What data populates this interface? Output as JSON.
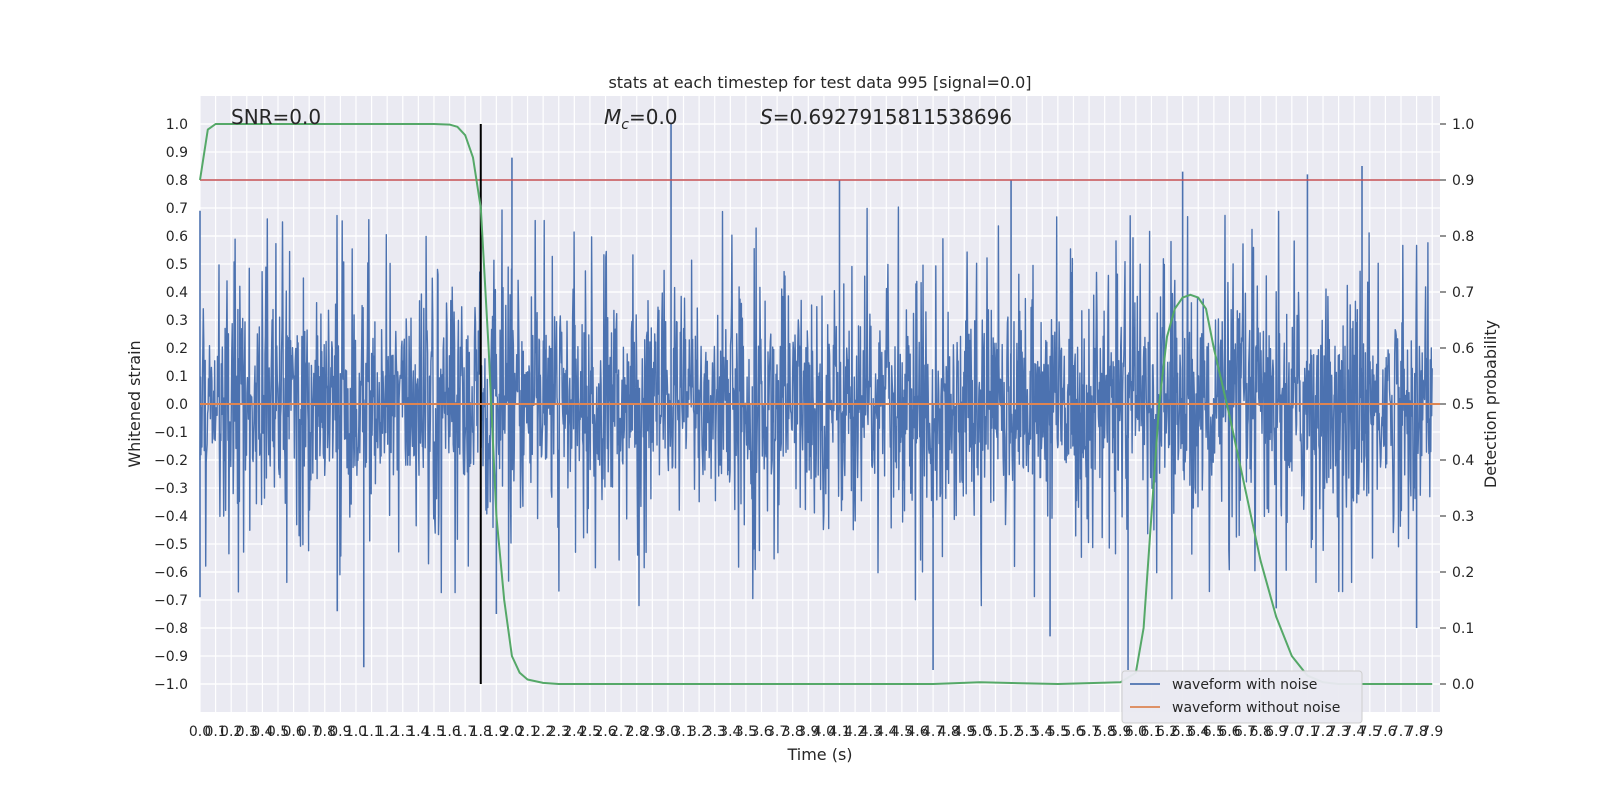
{
  "chart_data": {
    "type": "line",
    "title": "stats at each timestep for test data 995 [signal=0.0]",
    "xlabel": "Time (s)",
    "ylabel": "Whitened strain",
    "y2label": "Detection probability",
    "xlim": [
      0,
      7.95
    ],
    "ylim": [
      -1.1,
      1.1
    ],
    "y2lim": [
      -0.05,
      1.05
    ],
    "grid": true,
    "legend_position": "lower-right",
    "x_ticks": [
      "0.0",
      "0.1",
      "0.2",
      "0.3",
      "0.4",
      "0.5",
      "0.6",
      "0.7",
      "0.8",
      "0.9",
      "1.0",
      "1.1",
      "1.2",
      "1.3",
      "1.4",
      "1.5",
      "1.6",
      "1.7",
      "1.8",
      "1.9",
      "2.0",
      "2.1",
      "2.2",
      "2.3",
      "2.4",
      "2.5",
      "2.6",
      "2.7",
      "2.8",
      "2.9",
      "3.0",
      "3.1",
      "3.2",
      "3.3",
      "3.4",
      "3.5",
      "3.6",
      "3.7",
      "3.8",
      "3.9",
      "4.0",
      "4.1",
      "4.2",
      "4.3",
      "4.4",
      "4.5",
      "4.6",
      "4.7",
      "4.8",
      "4.9",
      "5.0",
      "5.1",
      "5.2",
      "5.3",
      "5.4",
      "5.5",
      "5.6",
      "5.7",
      "5.8",
      "5.9",
      "6.0",
      "6.1",
      "6.2",
      "6.3",
      "6.4",
      "6.5",
      "6.6",
      "6.7",
      "6.8",
      "6.9",
      "7.0",
      "7.1",
      "7.2",
      "7.3",
      "7.4",
      "7.5",
      "7.6",
      "7.7",
      "7.8",
      "7.9"
    ],
    "y_ticks": [
      "1.0",
      "0.9",
      "0.8",
      "0.7",
      "0.6",
      "0.5",
      "0.4",
      "0.3",
      "0.2",
      "0.1",
      "0.0",
      "-0.1",
      "-0.2",
      "-0.3",
      "-0.4",
      "-0.5",
      "-0.6",
      "-0.7",
      "-0.8",
      "-0.9",
      "-1.0"
    ],
    "y2_ticks": [
      "1.0",
      "0.9",
      "0.8",
      "0.7",
      "0.6",
      "0.5",
      "0.4",
      "0.3",
      "0.2",
      "0.1",
      "0.0"
    ],
    "annotations": {
      "snr": "SNR=0.0",
      "mc_symbol": "M",
      "mc_subscript": "c",
      "mc_value": "=0.0",
      "s_symbol": "S",
      "s_value": "=0.6927915811538696"
    },
    "series": [
      {
        "name": "waveform with noise",
        "color": "#4c72b0",
        "axis": "left",
        "style": "dense noise, envelope about ±0.4, peaks to ±1.0",
        "peaks": [
          {
            "x": 0.0,
            "y": 0.69
          },
          {
            "x": 0.0,
            "y": -0.69
          },
          {
            "x": 1.05,
            "y": -0.94
          },
          {
            "x": 0.88,
            "y": -0.74
          },
          {
            "x": 2.0,
            "y": 0.88
          },
          {
            "x": 1.9,
            "y": -0.75
          },
          {
            "x": 3.02,
            "y": 1.0
          },
          {
            "x": 4.1,
            "y": 0.8
          },
          {
            "x": 4.7,
            "y": -0.95
          },
          {
            "x": 5.2,
            "y": 0.8
          },
          {
            "x": 5.45,
            "y": -0.83
          },
          {
            "x": 5.95,
            "y": -0.95
          },
          {
            "x": 6.3,
            "y": 0.83
          },
          {
            "x": 6.9,
            "y": -0.73
          },
          {
            "x": 7.1,
            "y": 0.82
          },
          {
            "x": 7.45,
            "y": 0.85
          },
          {
            "x": 7.8,
            "y": -0.8
          }
        ]
      },
      {
        "name": "waveform without noise",
        "color": "#dd8452",
        "axis": "left",
        "x": [
          0,
          7.95
        ],
        "y": [
          0,
          0
        ]
      },
      {
        "name": "detection probability",
        "color": "#55a868",
        "axis": "right",
        "x": [
          0.0,
          0.05,
          0.1,
          0.2,
          0.5,
          1.0,
          1.5,
          1.6,
          1.65,
          1.7,
          1.75,
          1.8,
          1.85,
          1.9,
          1.95,
          2.0,
          2.05,
          2.1,
          2.2,
          2.3,
          3.0,
          4.0,
          4.7,
          5.0,
          5.5,
          5.9,
          6.0,
          6.05,
          6.1,
          6.15,
          6.2,
          6.25,
          6.3,
          6.35,
          6.4,
          6.45,
          6.5,
          6.6,
          6.7,
          6.8,
          6.9,
          7.0,
          7.1,
          7.2,
          7.3,
          7.9
        ],
        "y": [
          0.9,
          0.99,
          1.0,
          1.0,
          1.0,
          1.0,
          1.0,
          0.999,
          0.995,
          0.98,
          0.94,
          0.85,
          0.6,
          0.3,
          0.15,
          0.05,
          0.02,
          0.008,
          0.002,
          0.0,
          0.0,
          0.0,
          0.0,
          0.003,
          0.0,
          0.003,
          0.02,
          0.1,
          0.3,
          0.5,
          0.62,
          0.67,
          0.69,
          0.695,
          0.69,
          0.67,
          0.6,
          0.48,
          0.35,
          0.22,
          0.12,
          0.05,
          0.015,
          0.003,
          0.0,
          0.0
        ]
      }
    ],
    "reference_lines": [
      {
        "type": "horizontal",
        "axis": "right",
        "y": 0.9,
        "color": "#c44e52"
      },
      {
        "type": "vertical",
        "x": 1.8,
        "y_range": [
          0.0,
          1.0
        ],
        "axis": "right",
        "color": "#000000"
      }
    ]
  }
}
